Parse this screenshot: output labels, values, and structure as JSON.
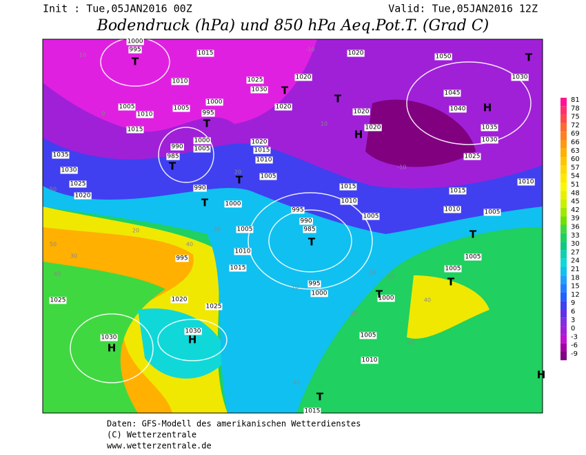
{
  "header": {
    "init": "Init : Tue,05JAN2016 00Z",
    "valid": "Valid: Tue,05JAN2016 12Z",
    "title": "Bodendruck (hPa) und 850 hPa Aeq.Pot.T. (Grad C)"
  },
  "colorbar": {
    "values": [
      81,
      78,
      75,
      72,
      69,
      66,
      63,
      60,
      57,
      54,
      51,
      48,
      45,
      42,
      39,
      36,
      33,
      30,
      27,
      24,
      21,
      18,
      15,
      12,
      9,
      6,
      3,
      0,
      -3,
      -6,
      -9
    ],
    "colors": [
      "#ff1493",
      "#ff3070",
      "#ff4a4a",
      "#ff6a30",
      "#ff8020",
      "#ff9a10",
      "#ffb000",
      "#ffc400",
      "#ffd800",
      "#ffe800",
      "#f8f800",
      "#e8f000",
      "#c8f000",
      "#a0e800",
      "#70e000",
      "#40d840",
      "#20d060",
      "#10c880",
      "#10d0b0",
      "#10d8d8",
      "#10c0f0",
      "#20a0f8",
      "#2080ff",
      "#2060ff",
      "#4040f0",
      "#6030e8",
      "#8030e0",
      "#a020d8",
      "#c010d0",
      "#a000a0",
      "#800080"
    ]
  },
  "map": {
    "isobars": [
      "1000",
      "995",
      "1015",
      "1010",
      "1005",
      "1010",
      "1005",
      "995",
      "1000",
      "1015",
      "990",
      "985",
      "1000",
      "1005",
      "1035",
      "1030",
      "1025",
      "1020",
      "990",
      "1000",
      "1005",
      "1010",
      "1015",
      "995",
      "1020",
      "1025",
      "1030",
      "1025",
      "1030",
      "1025",
      "1030",
      "1020",
      "1020",
      "1020",
      "1015",
      "1010",
      "1005",
      "1020",
      "1050",
      "1045",
      "1040",
      "1035",
      "1030",
      "1025",
      "1020",
      "1020",
      "1015",
      "1010",
      "1005",
      "1015",
      "1010",
      "1005",
      "1005",
      "1005",
      "995",
      "990",
      "985",
      "995",
      "1000",
      "1000",
      "1005",
      "1010",
      "1030",
      "1010",
      "1015"
    ],
    "centers": [
      "T",
      "T",
      "T",
      "T",
      "T",
      "T",
      "T",
      "T",
      "T",
      "T",
      "T",
      "T",
      "T",
      "H",
      "H",
      "H",
      "H",
      "H"
    ],
    "temps": [
      "10",
      "0",
      "-10",
      "-10",
      "10",
      "20",
      "30",
      "40",
      "50",
      "50",
      "40",
      "30",
      "20",
      "10",
      "40",
      "40",
      "30",
      "20",
      "10",
      "40"
    ]
  },
  "footer": [
    "Daten: GFS-Modell des amerikanischen Wetterdienstes",
    "(C) Wetterzentrale",
    "www.wetterzentrale.de"
  ]
}
